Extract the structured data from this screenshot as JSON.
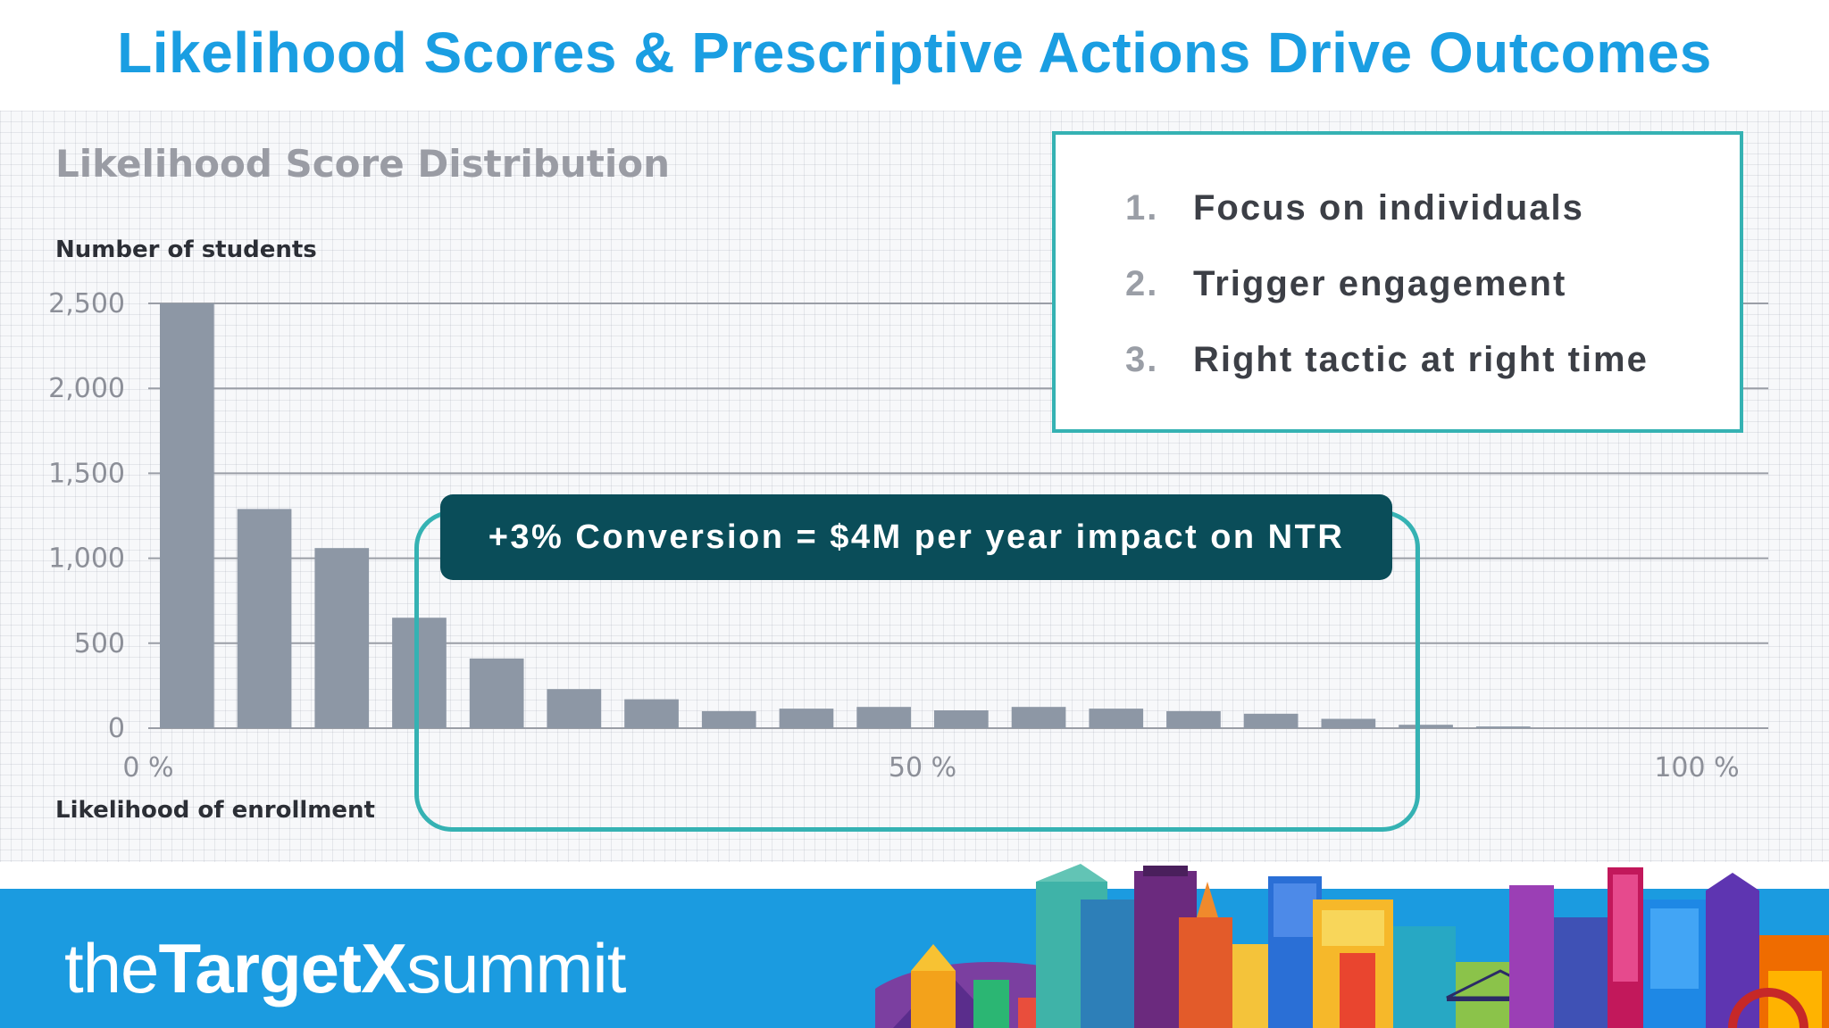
{
  "slide": {
    "title": "Likelihood Scores & Prescriptive Actions Drive Outcomes"
  },
  "chart_data": {
    "type": "bar",
    "title": "Likelihood Score Distribution",
    "ylabel": "Number of students",
    "xlabel": "Likelihood of enrollment",
    "ylim": [
      0,
      2500
    ],
    "xlim": [
      0,
      100
    ],
    "y_ticks": [
      {
        "value": 0,
        "label": "0"
      },
      {
        "value": 500,
        "label": "500"
      },
      {
        "value": 1000,
        "label": "1,000"
      },
      {
        "value": 1500,
        "label": "1,500"
      },
      {
        "value": 2000,
        "label": "2,000"
      },
      {
        "value": 2500,
        "label": "2,500"
      }
    ],
    "x_ticks": [
      {
        "value": 0,
        "label": "0 %"
      },
      {
        "value": 50,
        "label": "50 %"
      },
      {
        "value": 100,
        "label": "100 %"
      }
    ],
    "grid": true,
    "bin_width": 5,
    "x": [
      5,
      10,
      15,
      20,
      25,
      30,
      35,
      40,
      45,
      50,
      55,
      60,
      65,
      70,
      75,
      80,
      85,
      90
    ],
    "values": [
      2500,
      1290,
      1060,
      650,
      410,
      230,
      170,
      100,
      115,
      125,
      105,
      125,
      115,
      100,
      85,
      55,
      20,
      10
    ],
    "colors": {
      "bar": "#8d97a5"
    }
  },
  "actions": {
    "items": [
      {
        "number": "1.",
        "text": "Focus on individuals"
      },
      {
        "number": "2.",
        "text": "Trigger engagement"
      },
      {
        "number": "3.",
        "text": "Right tactic at right time"
      }
    ]
  },
  "callout": {
    "text": "+3% Conversion = $4M per year impact on NTR"
  },
  "footer": {
    "brand_prefix": "the",
    "brand_name": "TargetX",
    "brand_suffix": "summit",
    "skyline_icon": "city-skyline-icon"
  },
  "colors": {
    "title": "#1a9ee2",
    "accent_teal": "#35b2b3",
    "banner": "#0a4d59",
    "footer": "#1b9be0"
  }
}
